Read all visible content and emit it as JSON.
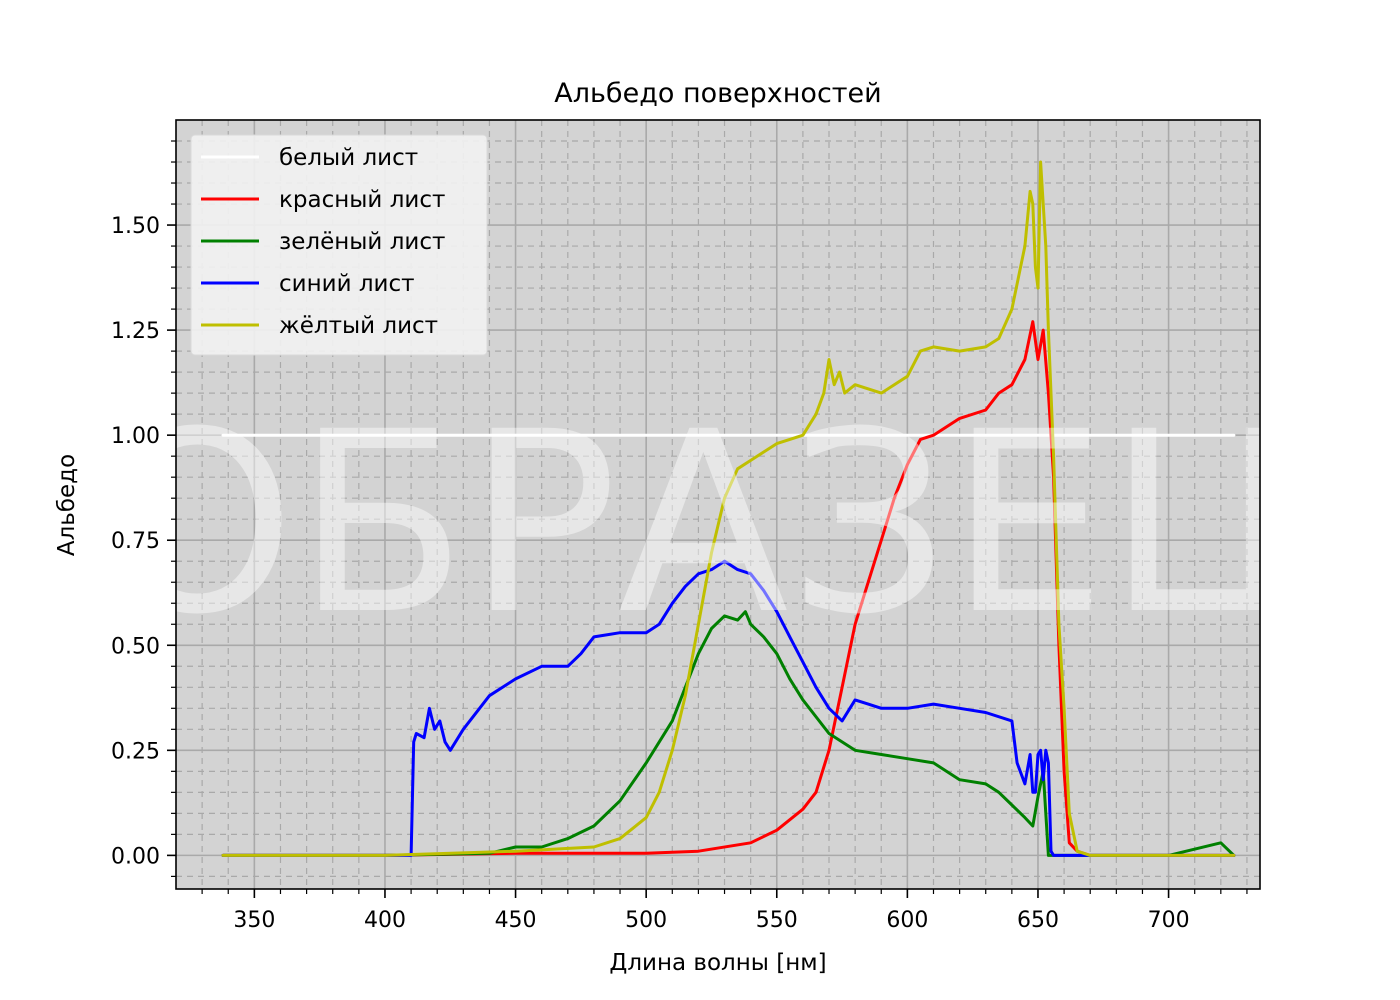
{
  "chart_data": {
    "type": "line",
    "title": "Альбедо поверхностей",
    "xlabel": "Длина волны [нм]",
    "ylabel": "Альбедо",
    "xlim": [
      320,
      735
    ],
    "ylim": [
      -0.08,
      1.75
    ],
    "xticks": [
      350,
      400,
      450,
      500,
      550,
      600,
      650,
      700
    ],
    "yticks": [
      0.0,
      0.25,
      0.5,
      0.75,
      1.0,
      1.25,
      1.5
    ],
    "ytick_labels": [
      "0.00",
      "0.25",
      "0.50",
      "0.75",
      "1.00",
      "1.25",
      "1.50"
    ],
    "grid": true,
    "background": "#d3d3d3",
    "legend_position": "upper-left",
    "watermark": "ОБРАЗЕЦ",
    "series": [
      {
        "name": "белый лист",
        "color": "#ffffff",
        "x": [
          338,
          725
        ],
        "y": [
          1.0,
          1.0
        ]
      },
      {
        "name": "красный лист",
        "color": "#ff0000",
        "x": [
          338,
          400,
          450,
          500,
          520,
          540,
          550,
          560,
          565,
          570,
          575,
          580,
          585,
          590,
          595,
          600,
          605,
          610,
          620,
          630,
          635,
          640,
          645,
          648,
          650,
          652,
          654,
          656,
          658,
          660,
          662,
          665,
          670,
          700,
          725
        ],
        "y": [
          0.0,
          0.0,
          0.005,
          0.005,
          0.01,
          0.03,
          0.06,
          0.11,
          0.15,
          0.25,
          0.4,
          0.55,
          0.65,
          0.75,
          0.85,
          0.93,
          0.99,
          1.0,
          1.04,
          1.06,
          1.1,
          1.12,
          1.18,
          1.27,
          1.18,
          1.25,
          1.1,
          0.9,
          0.5,
          0.2,
          0.03,
          0.01,
          0.0,
          0.0,
          0.0
        ]
      },
      {
        "name": "зелёный лист",
        "color": "#008000",
        "x": [
          338,
          400,
          440,
          450,
          460,
          470,
          480,
          490,
          500,
          510,
          515,
          520,
          525,
          530,
          535,
          538,
          540,
          545,
          550,
          555,
          560,
          570,
          580,
          590,
          600,
          610,
          620,
          630,
          635,
          640,
          645,
          648,
          650,
          652,
          653,
          654,
          655,
          656,
          660,
          700,
          720,
          725
        ],
        "y": [
          0.0,
          0.0,
          0.005,
          0.02,
          0.02,
          0.04,
          0.07,
          0.13,
          0.22,
          0.32,
          0.4,
          0.48,
          0.54,
          0.57,
          0.56,
          0.58,
          0.55,
          0.52,
          0.48,
          0.42,
          0.37,
          0.29,
          0.25,
          0.24,
          0.23,
          0.22,
          0.18,
          0.17,
          0.15,
          0.12,
          0.09,
          0.07,
          0.14,
          0.2,
          0.1,
          0.0,
          0.0,
          0.0,
          0.0,
          0.0,
          0.03,
          0.0
        ]
      },
      {
        "name": "синий лист",
        "color": "#0000ff",
        "x": [
          338,
          410,
          411,
          412,
          415,
          417,
          419,
          421,
          423,
          425,
          430,
          440,
          450,
          460,
          470,
          475,
          480,
          490,
          500,
          505,
          510,
          515,
          520,
          525,
          530,
          535,
          540,
          545,
          550,
          555,
          560,
          565,
          570,
          575,
          580,
          585,
          590,
          600,
          610,
          620,
          630,
          640,
          642,
          645,
          647,
          648,
          649,
          650,
          651,
          652,
          653,
          654,
          655,
          656,
          660,
          670,
          700,
          725
        ],
        "y": [
          0.0,
          0.0,
          0.27,
          0.29,
          0.28,
          0.35,
          0.3,
          0.32,
          0.27,
          0.25,
          0.3,
          0.38,
          0.42,
          0.45,
          0.45,
          0.48,
          0.52,
          0.53,
          0.53,
          0.55,
          0.6,
          0.64,
          0.67,
          0.68,
          0.7,
          0.68,
          0.67,
          0.63,
          0.58,
          0.52,
          0.46,
          0.4,
          0.35,
          0.32,
          0.37,
          0.36,
          0.35,
          0.35,
          0.36,
          0.35,
          0.34,
          0.32,
          0.22,
          0.17,
          0.24,
          0.15,
          0.15,
          0.24,
          0.25,
          0.18,
          0.25,
          0.22,
          0.01,
          0.0,
          0.0,
          0.0,
          0.0,
          0.0
        ]
      },
      {
        "name": "жёлтый лист",
        "color": "#bfbf00",
        "x": [
          338,
          400,
          450,
          480,
          490,
          500,
          505,
          510,
          515,
          520,
          525,
          530,
          535,
          540,
          545,
          550,
          555,
          560,
          565,
          568,
          570,
          572,
          574,
          576,
          580,
          590,
          595,
          600,
          605,
          610,
          620,
          630,
          635,
          640,
          645,
          647,
          648,
          649,
          650,
          651,
          652,
          653,
          654,
          656,
          658,
          660,
          662,
          665,
          670,
          700,
          725
        ],
        "y": [
          0.0,
          0.0,
          0.01,
          0.02,
          0.04,
          0.09,
          0.15,
          0.25,
          0.38,
          0.55,
          0.72,
          0.85,
          0.92,
          0.94,
          0.96,
          0.98,
          0.99,
          1.0,
          1.05,
          1.1,
          1.18,
          1.12,
          1.15,
          1.1,
          1.12,
          1.1,
          1.12,
          1.14,
          1.2,
          1.21,
          1.2,
          1.21,
          1.23,
          1.3,
          1.45,
          1.58,
          1.55,
          1.4,
          1.35,
          1.65,
          1.55,
          1.45,
          1.25,
          0.95,
          0.55,
          0.35,
          0.1,
          0.01,
          0.0,
          0.0,
          0.0
        ]
      }
    ]
  }
}
